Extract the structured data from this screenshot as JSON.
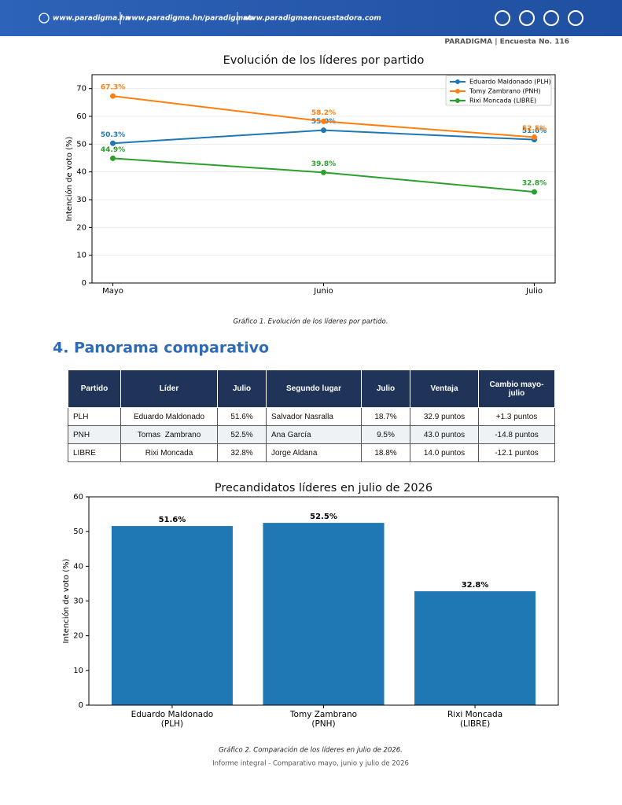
{
  "header": {
    "links": [
      "www.paradigma.hn",
      "www.paradigma.hn/paradigmatv",
      "www.paradigmaencuestadora.com"
    ],
    "brand": "PARADIGMA | Encuesta No. 116"
  },
  "chart_data": [
    {
      "type": "line",
      "title": "Evolución de los líderes por partido",
      "y_label": "Intención de voto (%)",
      "categories": [
        "Mayo",
        "Junio",
        "Julio"
      ],
      "series": [
        {
          "name": "Eduardo Maldonado (PLH)",
          "color": "#1f77b4",
          "values": [
            50.3,
            55.0,
            51.6
          ],
          "value_labels": [
            "50.3%",
            "55.0%",
            "51.6%"
          ]
        },
        {
          "name": "Tomy Zambrano (PNH)",
          "color": "#ff7f0e",
          "values": [
            67.3,
            58.2,
            52.5
          ],
          "value_labels": [
            "67.3%",
            "58.2%",
            "52.5%"
          ]
        },
        {
          "name": "Rixi Moncada (LIBRE)",
          "color": "#2ca02c",
          "values": [
            44.9,
            39.8,
            32.8
          ],
          "value_labels": [
            "44.9%",
            "39.8%",
            "32.8%"
          ]
        }
      ],
      "ylim": [
        0,
        75
      ],
      "yticks": [
        0,
        10,
        20,
        30,
        40,
        50,
        60,
        70
      ],
      "grid": true,
      "legend": "upper right"
    },
    {
      "type": "bar",
      "title": "Precandidatos líderes en julio de 2026",
      "y_label": "Intención de voto (%)",
      "categories": [
        "Eduardo Maldonado\n(PLH)",
        "Tomy Zambrano\n(PNH)",
        "Rixi Moncada\n(LIBRE)"
      ],
      "values": [
        51.6,
        52.5,
        32.8
      ],
      "value_labels": [
        "51.6%",
        "52.5%",
        "32.8%"
      ],
      "color": "#1f77b4",
      "ylim": [
        0,
        60
      ],
      "yticks": [
        0,
        10,
        20,
        30,
        40,
        50,
        60
      ],
      "grid": false
    }
  ],
  "captions": [
    "Gráfico 1. Evolución de los líderes por partido.",
    "Gráfico 2. Comparación de los líderes en julio de 2026."
  ],
  "section_title": "4. Panorama comparativo",
  "table": {
    "headers": [
      "Partido",
      "Líder",
      "Julio",
      "Segundo lugar",
      "Julio",
      "Ventaja",
      "Cambio mayo-julio"
    ],
    "rows": [
      [
        "PLH",
        "Eduardo Maldonado",
        "51.6%",
        "Salvador Nasralla",
        "18.7%",
        "32.9 puntos",
        "+1.3 puntos"
      ],
      [
        "PNH",
        "Tomas  Zambrano",
        "52.5%",
        "Ana García",
        "9.5%",
        "43.0 puntos",
        "-14.8 puntos"
      ],
      [
        "LIBRE",
        "Rixi Moncada",
        "32.8%",
        "Jorge Aldana",
        "18.8%",
        "14.0 puntos",
        "-12.1 puntos"
      ]
    ]
  },
  "footer": "Informe integral - Comparativo mayo, junio y julio de 2026"
}
